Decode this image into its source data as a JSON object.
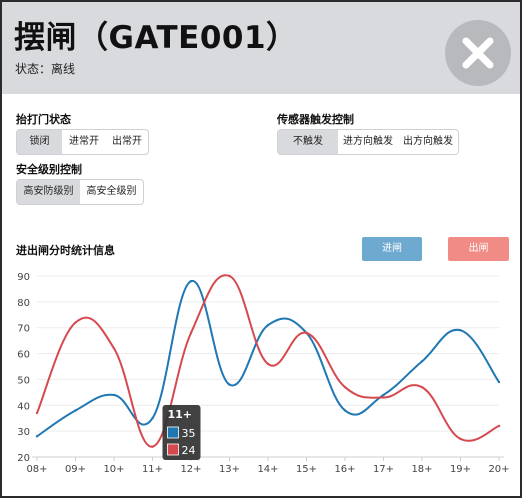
{
  "header": {
    "title": "摆闸（GATE001）",
    "status_label": "状态：",
    "status_value": "离线"
  },
  "controls": {
    "gate_status": {
      "label": "抬打门状态",
      "options": [
        "锁闭",
        "进常开",
        "出常开"
      ],
      "selected": "锁闭"
    },
    "sensor": {
      "label": "传感器触发控制",
      "options": [
        "不触发",
        "进方向触发",
        "出方向触发"
      ],
      "selected": "不触发"
    },
    "security": {
      "label": "安全级别控制",
      "options": [
        "高安防级别",
        "高安全级别"
      ],
      "selected": "高安防级别"
    }
  },
  "stats": {
    "label": "进出闸分时统计信息",
    "in_button": "进闸",
    "out_button": "出闸"
  },
  "chart_data": {
    "type": "line",
    "categories": [
      "08+",
      "09+",
      "10+",
      "11+",
      "12+",
      "13+",
      "14+",
      "15+",
      "16+",
      "17+",
      "18+",
      "19+",
      "20+"
    ],
    "ylim": [
      20,
      90
    ],
    "yticks": [
      20,
      30,
      40,
      50,
      60,
      70,
      80,
      90
    ],
    "series": [
      {
        "name": "进闸",
        "color": "#1f77b4",
        "values": [
          28,
          38,
          44,
          35,
          88,
          48,
          71,
          68,
          38,
          44,
          57,
          69,
          49
        ]
      },
      {
        "name": "出闸",
        "color": "#d6494e",
        "values": [
          37,
          72,
          62,
          24,
          68,
          90,
          56,
          68,
          47,
          43,
          47,
          27,
          32
        ]
      }
    ],
    "tooltip": {
      "title": "11+",
      "values": [
        "35",
        "24"
      ]
    }
  }
}
